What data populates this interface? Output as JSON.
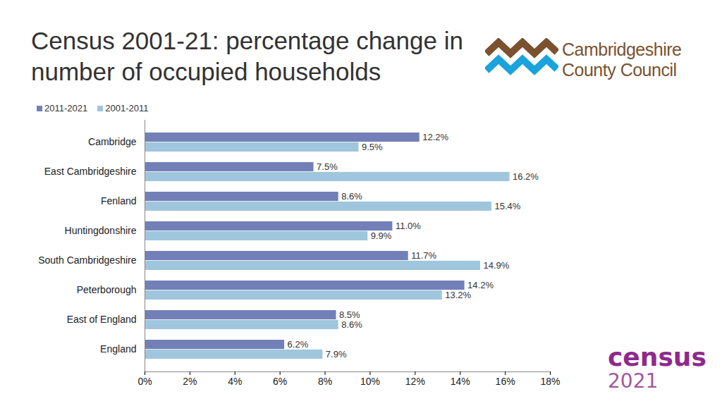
{
  "chart_data": {
    "type": "bar",
    "title": "Census 2001-21: percentage change in number of occupied households",
    "orientation": "horizontal",
    "categories": [
      "Cambridge",
      "East Cambridgeshire",
      "Fenland",
      "Huntingdonshire",
      "South Cambridgeshire",
      "Peterborough",
      "East of England",
      "England"
    ],
    "series": [
      {
        "name": "2011-2021",
        "color": "#7380b8",
        "values": [
          12.2,
          7.5,
          8.6,
          11.0,
          11.7,
          14.2,
          8.5,
          6.2
        ],
        "value_labels": [
          "12.2%",
          "7.5%",
          "8.6%",
          "11.0%",
          "11.7%",
          "14.2%",
          "8.5%",
          "6.2%"
        ]
      },
      {
        "name": "2001-2011",
        "color": "#9fc6dc",
        "values": [
          9.5,
          16.2,
          15.4,
          9.9,
          14.9,
          13.2,
          8.6,
          7.9
        ],
        "value_labels": [
          "9.5%",
          "16.2%",
          "15.4%",
          "9.9%",
          "14.9%",
          "13.2%",
          "8.6%",
          "7.9%"
        ]
      }
    ],
    "xlim": [
      0,
      18
    ],
    "xticks": [
      {
        "value": 0,
        "label": "0%"
      },
      {
        "value": 2,
        "label": "2%"
      },
      {
        "value": 4,
        "label": "4%"
      },
      {
        "value": 6,
        "label": "6%"
      },
      {
        "value": 8,
        "label": "8%"
      },
      {
        "value": 10,
        "label": "10%"
      },
      {
        "value": 12,
        "label": "12%"
      },
      {
        "value": 14,
        "label": "14%"
      },
      {
        "value": 16,
        "label": "16%"
      },
      {
        "value": 18,
        "label": "18%"
      }
    ],
    "data_labels": true,
    "grid": false,
    "legend": "top",
    "annotations": [
      "Cambridgeshire",
      "County Council",
      "census",
      "2021"
    ]
  }
}
